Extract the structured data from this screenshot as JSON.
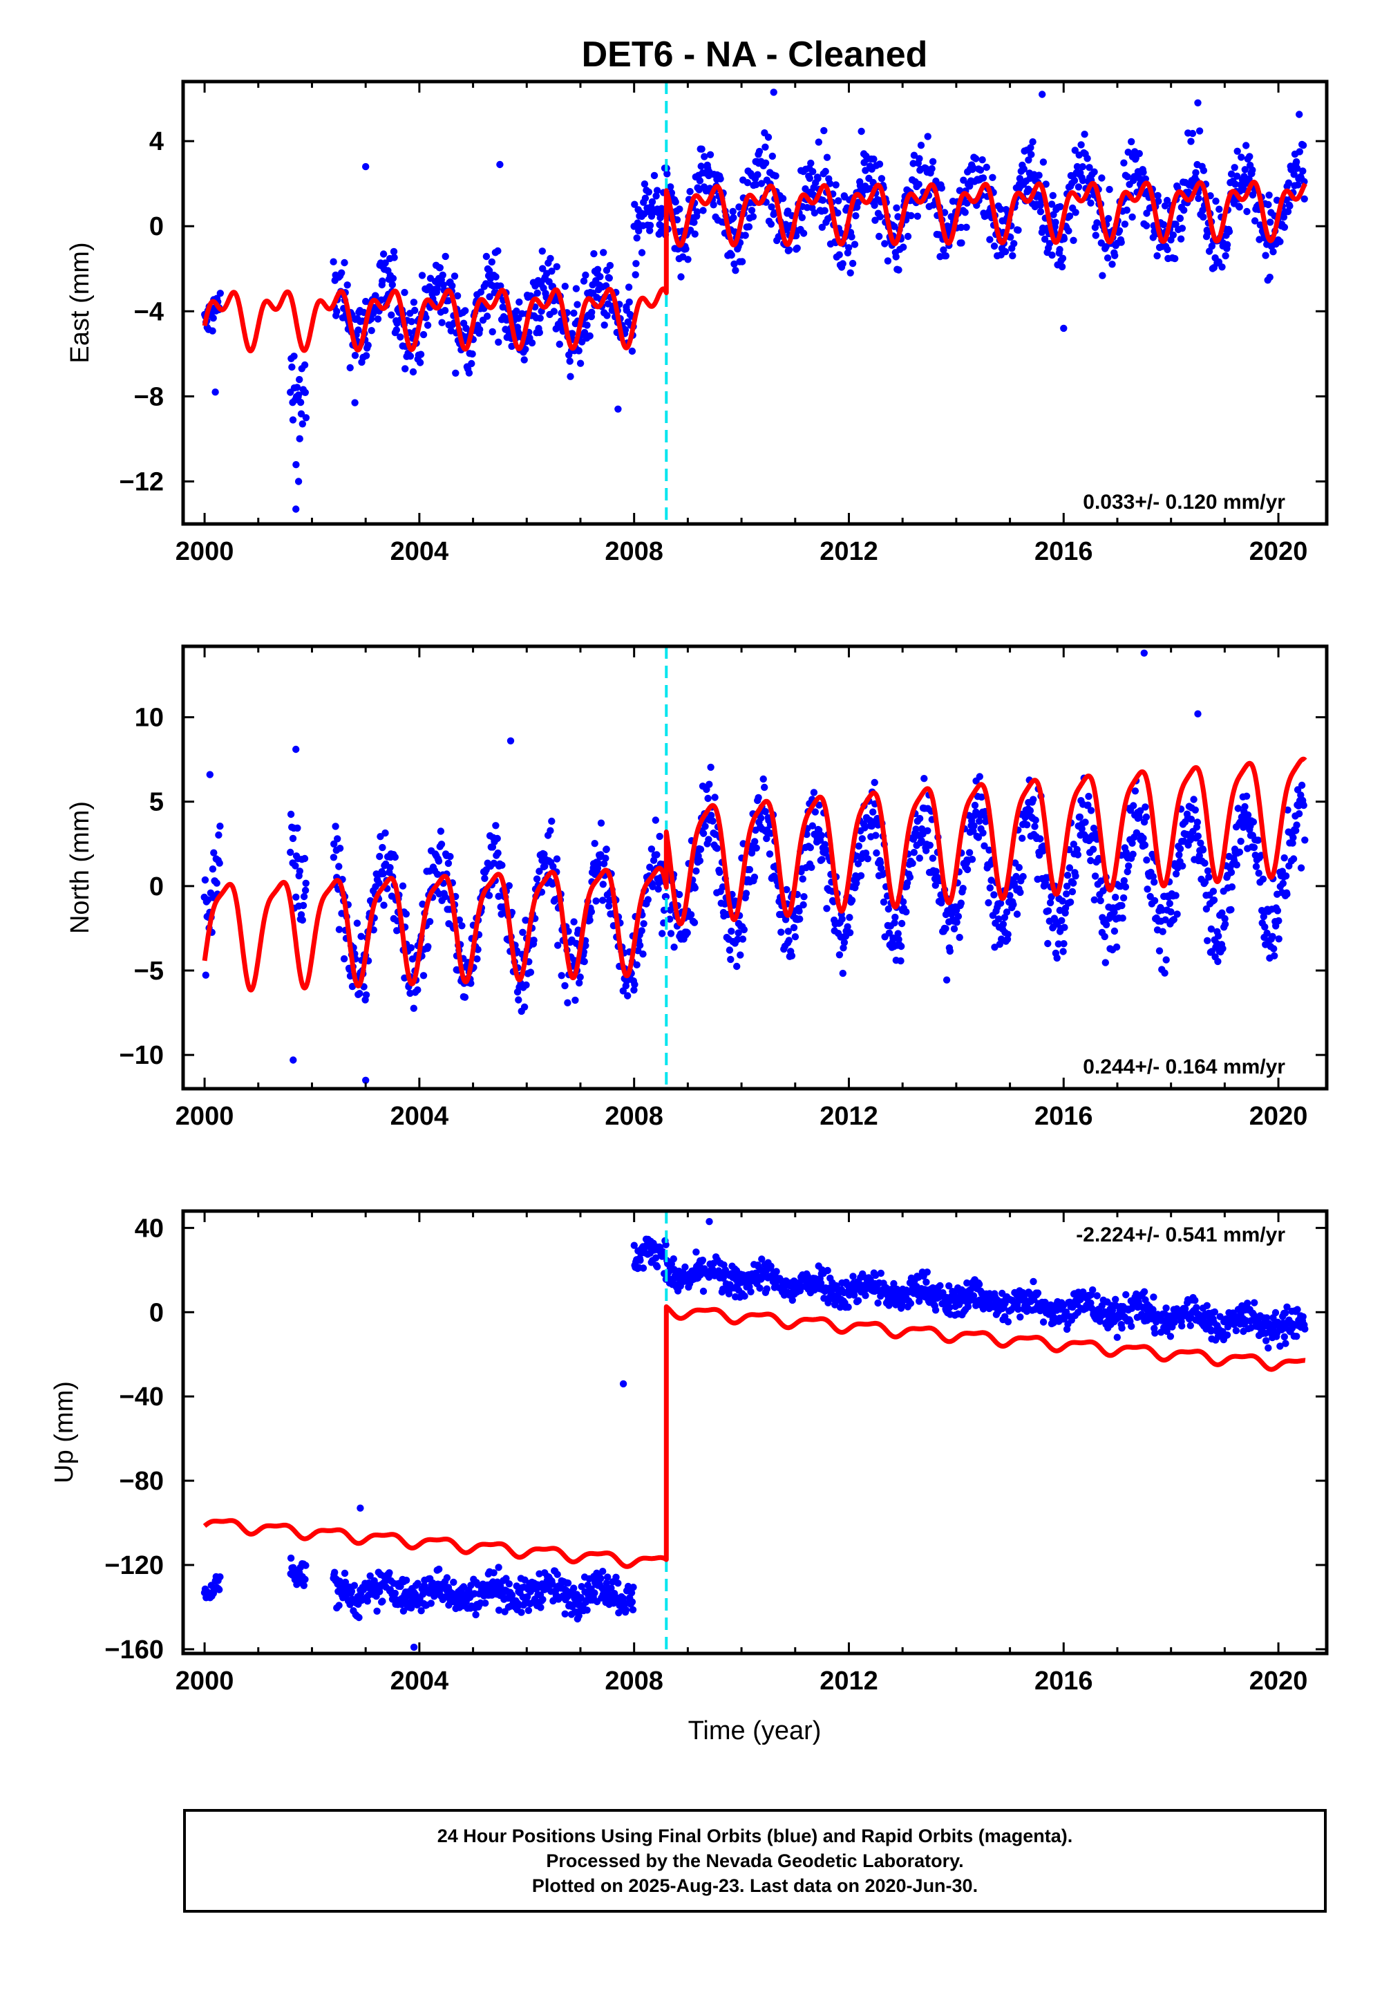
{
  "title": "DET6  - NA - Cleaned",
  "xlabel": "Time (year)",
  "footer": {
    "line1": "24 Hour Positions Using Final Orbits (blue) and Rapid Orbits (magenta).",
    "line2": "Processed by the Nevada Geodetic Laboratory.",
    "line3": "Plotted on 2025-Aug-23. Last data on 2020-Jun-30."
  },
  "colors": {
    "data": "#0000ff",
    "model": "#ff0000",
    "offset_line": "#00e5ee",
    "frame": "#000000"
  },
  "chart_data": [
    {
      "type": "scatter",
      "ylabel": "East (mm)",
      "rate_text": "0.033+/- 0.120 mm/yr",
      "rate_position": "bottom-right",
      "xlim": [
        1999.6,
        2020.9
      ],
      "ylim": [
        -14,
        6.8
      ],
      "xticks": [
        2000,
        2004,
        2008,
        2012,
        2016,
        2020
      ],
      "yticks": [
        4,
        0,
        -4,
        -8,
        -12
      ],
      "ytick_labels": [
        "4",
        "0",
        "−4",
        "−8",
        "−12"
      ],
      "offset_epoch": 2008.6,
      "data_gaps": [
        [
          2000.3,
          2001.6
        ],
        [
          2001.9,
          2002.4
        ],
        [
          2016.8,
          2017.3
        ]
      ],
      "data_segments": [
        {
          "from": 2000.0,
          "to": 2000.3,
          "base": -4.2,
          "amp": 0.6,
          "noise": 0.7
        },
        {
          "from": 2001.6,
          "to": 2001.9,
          "base": -7.5,
          "amp": 1.0,
          "noise": 1.8
        },
        {
          "from": 2002.4,
          "to": 2008.0,
          "base": -4.0,
          "amp": 1.1,
          "noise": 1.3
        },
        {
          "from": 2008.0,
          "to": 2008.6,
          "base": 0.0,
          "amp": 0.8,
          "noise": 1.3
        },
        {
          "from": 2008.6,
          "to": 2020.5,
          "base": 1.0,
          "amp": 1.5,
          "noise": 1.3
        }
      ],
      "model_segments": [
        {
          "from": 2000.0,
          "to": 2008.6,
          "base": -4.2,
          "a1": 1.0,
          "a2": 0.7,
          "trend": 0.02
        },
        {
          "from": 2008.6,
          "to": 2020.5,
          "base": 0.6,
          "a1": 1.0,
          "a2": 0.7,
          "trend": 0.02
        }
      ],
      "outliers": [
        [
          2000.2,
          -7.8
        ],
        [
          2001.7,
          -13.3
        ],
        [
          2001.75,
          -12.0
        ],
        [
          2002.8,
          -8.3
        ],
        [
          2003.0,
          2.8
        ],
        [
          2005.5,
          2.9
        ],
        [
          2007.7,
          -8.6
        ],
        [
          2010.6,
          6.3
        ],
        [
          2015.6,
          6.2
        ],
        [
          2016.0,
          -4.8
        ],
        [
          2018.5,
          5.8
        ]
      ]
    },
    {
      "type": "scatter",
      "ylabel": "North (mm)",
      "rate_text": "0.244+/- 0.164 mm/yr",
      "rate_position": "bottom-right",
      "xlim": [
        1999.6,
        2020.9
      ],
      "ylim": [
        -12,
        14.2
      ],
      "xticks": [
        2000,
        2004,
        2008,
        2012,
        2016,
        2020
      ],
      "yticks": [
        10,
        5,
        0,
        -5,
        -10
      ],
      "ytick_labels": [
        "10",
        "5",
        "0",
        "−5",
        "−10"
      ],
      "offset_epoch": 2008.6,
      "data_gaps": [
        [
          2000.3,
          2001.6
        ],
        [
          2001.9,
          2002.4
        ],
        [
          2016.8,
          2017.3
        ]
      ],
      "data_segments": [
        {
          "from": 2000.0,
          "to": 2000.3,
          "base": -1.0,
          "amp": 3.0,
          "noise": 2.0
        },
        {
          "from": 2001.6,
          "to": 2001.9,
          "base": 2.0,
          "amp": 3.0,
          "noise": 2.5
        },
        {
          "from": 2002.4,
          "to": 2008.6,
          "base": -1.8,
          "amp": 3.2,
          "noise": 1.8
        },
        {
          "from": 2008.6,
          "to": 2020.5,
          "base": 0.8,
          "amp": 3.3,
          "noise": 1.8
        }
      ],
      "model_segments": [
        {
          "from": 2000.0,
          "to": 2008.6,
          "base": -2.5,
          "a1": 3.0,
          "a2": 0.8,
          "trend": 0.12
        },
        {
          "from": 2008.6,
          "to": 2020.5,
          "base": -0.4,
          "a1": 3.3,
          "a2": 0.8,
          "trend": 0.25
        }
      ],
      "outliers": [
        [
          2000.1,
          6.6
        ],
        [
          2001.7,
          8.1
        ],
        [
          2001.65,
          -10.3
        ],
        [
          2003.0,
          -11.5
        ],
        [
          2005.7,
          8.6
        ],
        [
          2017.5,
          13.8
        ],
        [
          2018.5,
          10.2
        ]
      ]
    },
    {
      "type": "scatter",
      "ylabel": "Up (mm)",
      "rate_text": "-2.224+/- 0.541 mm/yr",
      "rate_position": "top-right",
      "xlim": [
        1999.6,
        2020.9
      ],
      "ylim": [
        -162,
        48
      ],
      "xticks": [
        2000,
        2004,
        2008,
        2012,
        2016,
        2020
      ],
      "yticks": [
        40,
        0,
        -40,
        -80,
        -120,
        -160
      ],
      "ytick_labels": [
        "40",
        "0",
        "−40",
        "−80",
        "−120",
        "−160"
      ],
      "offset_epoch": 2008.6,
      "data_gaps": [
        [
          2000.3,
          2001.6
        ],
        [
          2001.9,
          2002.4
        ],
        [
          2016.8,
          2017.3
        ]
      ],
      "data_segments": [
        {
          "from": 2000.0,
          "to": 2000.3,
          "base": -132.0,
          "amp": 3.0,
          "noise": 4.0
        },
        {
          "from": 2001.6,
          "to": 2001.9,
          "base": -122.0,
          "amp": 3.0,
          "noise": 5.0
        },
        {
          "from": 2002.4,
          "to": 2008.0,
          "base": -133.0,
          "amp": 3.0,
          "noise": 6.0
        },
        {
          "from": 2008.0,
          "to": 2008.6,
          "base": 27.0,
          "amp": 3.0,
          "noise": 5.0
        },
        {
          "from": 2008.6,
          "to": 2020.5,
          "base": 19.0,
          "amp": 3.0,
          "noise": 5.5,
          "trend": -2.2
        }
      ],
      "model_segments": [
        {
          "from": 2000.0,
          "to": 2008.6,
          "base": -100.0,
          "a1": 2.5,
          "a2": 1.0,
          "trend": -2.2
        },
        {
          "from": 2008.6,
          "to": 2020.5,
          "base": 20.0,
          "a1": 2.5,
          "a2": 1.0,
          "trend": -2.2
        }
      ],
      "outliers": [
        [
          2002.9,
          -93.0
        ],
        [
          2007.8,
          -34.0
        ],
        [
          2009.4,
          43.0
        ],
        [
          2003.9,
          -159.0
        ]
      ]
    }
  ]
}
